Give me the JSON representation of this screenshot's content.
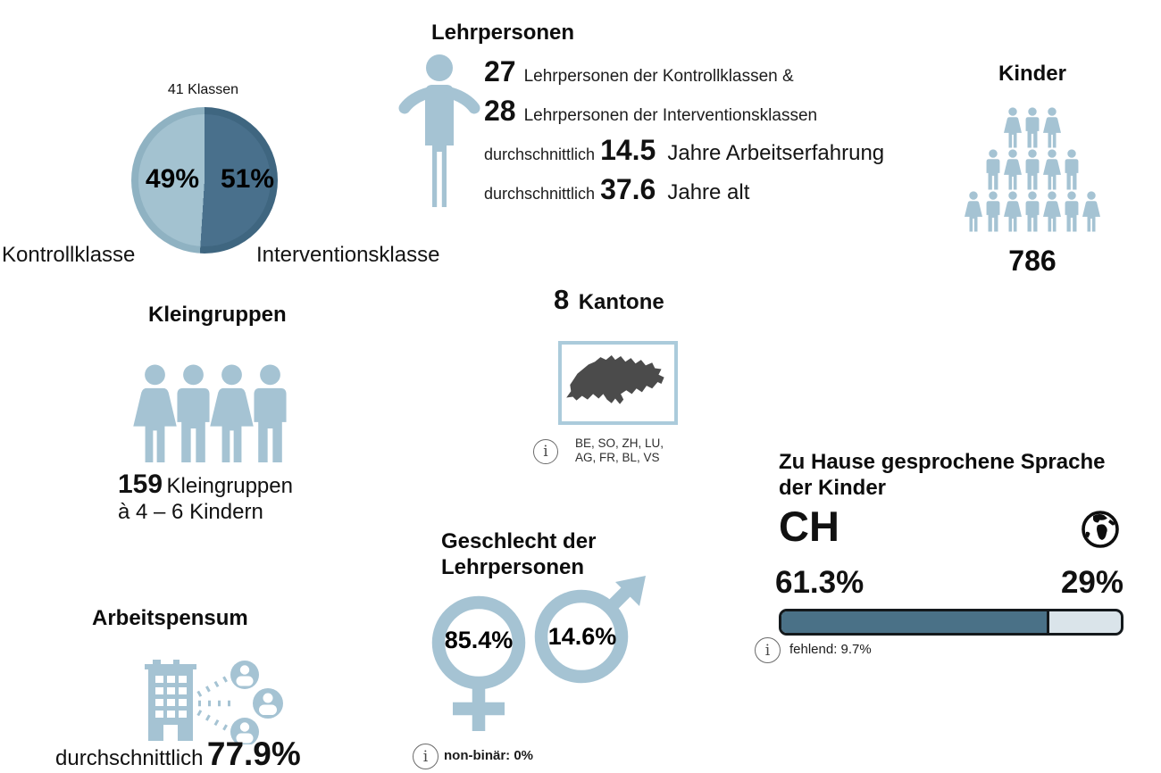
{
  "colors": {
    "icon_blue": "#a5c3d3",
    "pie_light": "#a3c2d0",
    "pie_dark": "#49708c",
    "bar_dark": "#4a7187",
    "bar_light": "#dae4ea",
    "map_gray": "#4b4b4b"
  },
  "sections": {
    "klassen": {
      "title": "41 Klassen",
      "slices": [
        {
          "label": "Kontrollklasse",
          "value": "49%"
        },
        {
          "label": "Interventionsklasse",
          "value": "51%"
        }
      ]
    },
    "lehrpersonen": {
      "title": "Lehrpersonen",
      "line1_value": "27",
      "line1_text": "Lehrpersonen der Kontrollklassen &",
      "line2_value": "28",
      "line2_text": "Lehrpersonen der Interventionsklassen",
      "line3_prefix": "durchschnittlich",
      "line3_value": "14.5",
      "line3_suffix": "Jahre Arbeitserfahrung",
      "line4_prefix": "durchschnittlich",
      "line4_value": "37.6",
      "line4_suffix": "Jahre alt"
    },
    "kinder": {
      "title": "Kinder",
      "count": "786"
    },
    "kleingruppen": {
      "title": "Kleingruppen",
      "count": "159",
      "count_label": "Kleingruppen",
      "line2": "à 4 – 6 Kindern"
    },
    "kantone": {
      "count": "8",
      "title": "Kantone",
      "info_line1": "BE,  SO,  ZH,  LU,",
      "info_line2": "AG, FR, BL, VS"
    },
    "sprache": {
      "title_line1": "Zu Hause gesprochene Sprache",
      "title_line2": "der Kinder",
      "label_ch": "CH",
      "pct_ch": "61.3%",
      "pct_other": "29%",
      "info": "fehlend: 9.7%"
    },
    "arbeitspensum": {
      "title": "Arbeitspensum",
      "prefix": "durchschnittlich",
      "value": "77.9%"
    },
    "geschlecht": {
      "title_line1": "Geschlecht der",
      "title_line2": "Lehrpersonen",
      "female_pct": "85.4%",
      "male_pct": "14.6%",
      "info": "non-binär: 0%"
    }
  },
  "chart_data": [
    {
      "type": "pie",
      "title": "41 Klassen",
      "labels": [
        "Kontrollklasse",
        "Interventionsklasse"
      ],
      "values": [
        49,
        51
      ],
      "unit": "%",
      "colors": [
        "#a3c2d0",
        "#49708c"
      ],
      "legend_position": "below"
    },
    {
      "type": "table",
      "title": "Lehrpersonen",
      "facts": [
        {
          "value": 27,
          "label": "Lehrpersonen der Kontrollklassen"
        },
        {
          "value": 28,
          "label": "Lehrpersonen der Interventionsklassen"
        },
        {
          "value": 14.5,
          "label": "durchschnittlich Jahre Arbeitserfahrung"
        },
        {
          "value": 37.6,
          "label": "durchschnittlich Jahre alt"
        }
      ]
    },
    {
      "type": "table",
      "title": "Kinder",
      "facts": [
        {
          "value": 786,
          "label": "Kinder"
        }
      ]
    },
    {
      "type": "table",
      "title": "Kleingruppen",
      "facts": [
        {
          "value": 159,
          "label": "Kleingruppen à 4 – 6 Kindern"
        }
      ]
    },
    {
      "type": "table",
      "title": "Kantone",
      "facts": [
        {
          "value": 8,
          "label": "Kantone"
        }
      ],
      "items": [
        "BE",
        "SO",
        "ZH",
        "LU",
        "AG",
        "FR",
        "BL",
        "VS"
      ]
    },
    {
      "type": "table",
      "title": "Arbeitspensum",
      "facts": [
        {
          "value": 77.9,
          "label": "durchschnittlich Arbeitspensum %"
        }
      ]
    },
    {
      "type": "pie",
      "title": "Geschlecht der Lehrpersonen",
      "labels": [
        "weiblich",
        "männlich",
        "non-binär"
      ],
      "values": [
        85.4,
        14.6,
        0
      ],
      "unit": "%"
    },
    {
      "type": "bar",
      "title": "Zu Hause gesprochene Sprache der Kinder",
      "categories": [
        "CH",
        "andere Sprache"
      ],
      "values": [
        61.3,
        29
      ],
      "missing_pct": 9.7,
      "unit": "%",
      "bar_fill_display_pct": 79,
      "orientation": "horizontal"
    }
  ]
}
